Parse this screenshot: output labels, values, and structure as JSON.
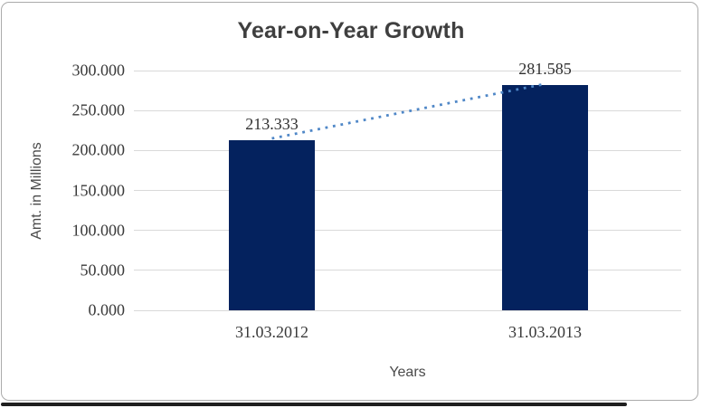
{
  "chart_data": {
    "type": "bar",
    "title": "Year-on-Year Growth",
    "xlabel": "Years",
    "ylabel": "Amt. in Millions",
    "categories": [
      "31.03.2012",
      "31.03.2013"
    ],
    "values": [
      213.333,
      281.585
    ],
    "data_labels": [
      "213.333",
      "281.585"
    ],
    "yticks": [
      {
        "value": 0,
        "label": "0.000"
      },
      {
        "value": 50,
        "label": "50.000"
      },
      {
        "value": 100,
        "label": "100.000"
      },
      {
        "value": 150,
        "label": "150.000"
      },
      {
        "value": 200,
        "label": "200.000"
      },
      {
        "value": 250,
        "label": "250.000"
      },
      {
        "value": 300,
        "label": "300.000"
      }
    ],
    "ylim": [
      0,
      300
    ],
    "grid": true,
    "legend": "none",
    "trendline": {
      "type": "linear",
      "style": "dotted"
    },
    "colors": {
      "bar": "#04225e",
      "trendline": "#4f87c7",
      "gridline": "#d9d9d9",
      "title_text": "#3f3f3f",
      "tick_text": "#3a3a3a",
      "data_label_text": "#303030",
      "axis_title_text": "#4a4a4a",
      "frame_border": "#ababab",
      "background": "#ffffff"
    }
  }
}
